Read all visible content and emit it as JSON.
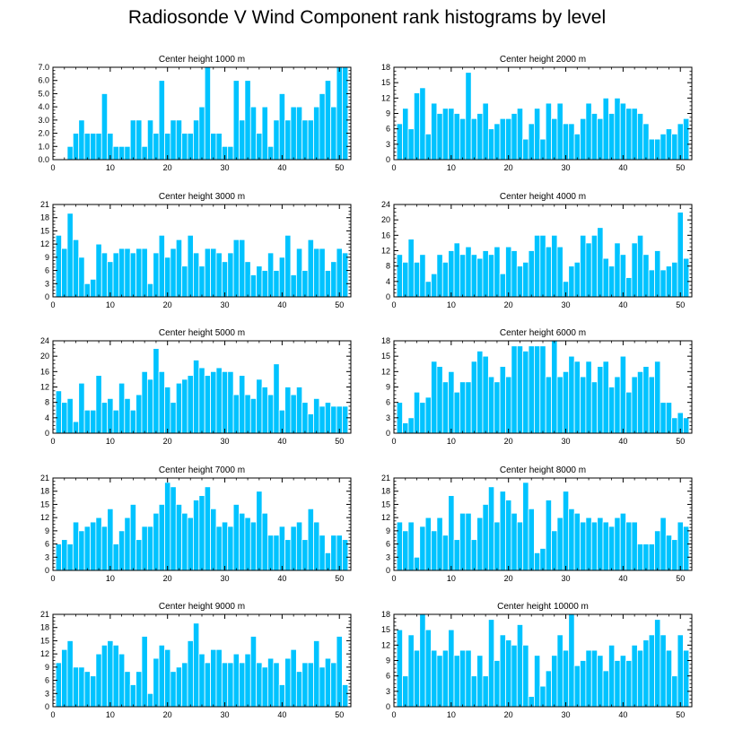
{
  "title": "Radiosonde V Wind Component rank histograms by level",
  "colors": {
    "bar": "#00c3ff",
    "bar_edge": "#ffffff",
    "axis": "#000000",
    "background": "#ffffff"
  },
  "chart_data": [
    {
      "type": "bar",
      "title": "Center height 1000 m",
      "x": [
        1,
        2,
        3,
        4,
        5,
        6,
        7,
        8,
        9,
        10,
        11,
        12,
        13,
        14,
        15,
        16,
        17,
        18,
        19,
        20,
        21,
        22,
        23,
        24,
        25,
        26,
        27,
        28,
        29,
        30,
        31,
        32,
        33,
        34,
        35,
        36,
        37,
        38,
        39,
        40,
        41,
        42,
        43,
        44,
        45,
        46,
        47,
        48,
        49,
        50,
        51
      ],
      "values": [
        0,
        0,
        1,
        2,
        3,
        2,
        2,
        2,
        5,
        2,
        1,
        1,
        1,
        3,
        3,
        1,
        3,
        2,
        6,
        2,
        3,
        3,
        2,
        2,
        3,
        4,
        7,
        2,
        2,
        1,
        1,
        6,
        3,
        6,
        4,
        2,
        4,
        1,
        3,
        5,
        3,
        4,
        4,
        3,
        3,
        4,
        5,
        6,
        4,
        7,
        7
      ],
      "xlim": [
        0,
        52
      ],
      "ylim": [
        0,
        7
      ],
      "yticks": [
        "0.0",
        "1.0",
        "2.0",
        "3.0",
        "4.0",
        "5.0",
        "6.0",
        "7.0"
      ],
      "xticks": [
        "0",
        "10",
        "20",
        "30",
        "40",
        "50"
      ]
    },
    {
      "type": "bar",
      "title": "Center height 2000 m",
      "x": [
        1,
        2,
        3,
        4,
        5,
        6,
        7,
        8,
        9,
        10,
        11,
        12,
        13,
        14,
        15,
        16,
        17,
        18,
        19,
        20,
        21,
        22,
        23,
        24,
        25,
        26,
        27,
        28,
        29,
        30,
        31,
        32,
        33,
        34,
        35,
        36,
        37,
        38,
        39,
        40,
        41,
        42,
        43,
        44,
        45,
        46,
        47,
        48,
        49,
        50,
        51
      ],
      "values": [
        7,
        10,
        6,
        13,
        14,
        5,
        11,
        9,
        10,
        10,
        9,
        8,
        17,
        8,
        9,
        11,
        6,
        7,
        8,
        8,
        9,
        10,
        4,
        7,
        10,
        4,
        11,
        8,
        11,
        7,
        7,
        5,
        8,
        11,
        9,
        8,
        12,
        9,
        12,
        11,
        10,
        10,
        9,
        7,
        4,
        4,
        5,
        6,
        5,
        7,
        8
      ],
      "xlim": [
        0,
        52
      ],
      "ylim": [
        0,
        18
      ],
      "yticks": [
        "0",
        "3",
        "6",
        "9",
        "12",
        "15",
        "18"
      ],
      "xticks": [
        "0",
        "10",
        "20",
        "30",
        "40",
        "50"
      ]
    },
    {
      "type": "bar",
      "title": "Center height 3000 m",
      "x": [
        1,
        2,
        3,
        4,
        5,
        6,
        7,
        8,
        9,
        10,
        11,
        12,
        13,
        14,
        15,
        16,
        17,
        18,
        19,
        20,
        21,
        22,
        23,
        24,
        25,
        26,
        27,
        28,
        29,
        30,
        31,
        32,
        33,
        34,
        35,
        36,
        37,
        38,
        39,
        40,
        41,
        42,
        43,
        44,
        45,
        46,
        47,
        48,
        49,
        50,
        51
      ],
      "values": [
        14,
        11,
        19,
        13,
        9,
        3,
        4,
        12,
        10,
        8,
        10,
        11,
        11,
        10,
        11,
        11,
        3,
        10,
        14,
        9,
        11,
        13,
        7,
        14,
        10,
        7,
        11,
        11,
        10,
        8,
        10,
        13,
        13,
        8,
        5,
        7,
        6,
        10,
        6,
        9,
        14,
        5,
        11,
        6,
        13,
        11,
        11,
        6,
        8,
        11,
        10
      ],
      "xlim": [
        0,
        52
      ],
      "ylim": [
        0,
        21
      ],
      "yticks": [
        "0",
        "3",
        "6",
        "9",
        "12",
        "15",
        "18",
        "21"
      ],
      "xticks": [
        "0",
        "10",
        "20",
        "30",
        "40",
        "50"
      ]
    },
    {
      "type": "bar",
      "title": "Center height 4000 m",
      "x": [
        1,
        2,
        3,
        4,
        5,
        6,
        7,
        8,
        9,
        10,
        11,
        12,
        13,
        14,
        15,
        16,
        17,
        18,
        19,
        20,
        21,
        22,
        23,
        24,
        25,
        26,
        27,
        28,
        29,
        30,
        31,
        32,
        33,
        34,
        35,
        36,
        37,
        38,
        39,
        40,
        41,
        42,
        43,
        44,
        45,
        46,
        47,
        48,
        49,
        50,
        51
      ],
      "values": [
        11,
        9,
        15,
        9,
        11,
        4,
        6,
        11,
        9,
        12,
        14,
        11,
        13,
        11,
        10,
        12,
        11,
        13,
        6,
        13,
        12,
        8,
        9,
        12,
        16,
        16,
        13,
        16,
        13,
        4,
        8,
        9,
        16,
        14,
        16,
        18,
        10,
        8,
        14,
        11,
        5,
        14,
        16,
        11,
        7,
        12,
        7,
        8,
        9,
        22,
        10
      ],
      "xlim": [
        0,
        52
      ],
      "ylim": [
        0,
        24
      ],
      "yticks": [
        "0",
        "4",
        "8",
        "12",
        "16",
        "20",
        "24"
      ],
      "xticks": [
        "0",
        "10",
        "20",
        "30",
        "40",
        "50"
      ]
    },
    {
      "type": "bar",
      "title": "Center height 5000 m",
      "x": [
        1,
        2,
        3,
        4,
        5,
        6,
        7,
        8,
        9,
        10,
        11,
        12,
        13,
        14,
        15,
        16,
        17,
        18,
        19,
        20,
        21,
        22,
        23,
        24,
        25,
        26,
        27,
        28,
        29,
        30,
        31,
        32,
        33,
        34,
        35,
        36,
        37,
        38,
        39,
        40,
        41,
        42,
        43,
        44,
        45,
        46,
        47,
        48,
        49,
        50,
        51
      ],
      "values": [
        11,
        8,
        9,
        3,
        13,
        6,
        6,
        15,
        8,
        9,
        6,
        13,
        9,
        6,
        10,
        16,
        14,
        22,
        16,
        12,
        8,
        13,
        14,
        15,
        19,
        17,
        15,
        16,
        17,
        16,
        16,
        10,
        15,
        10,
        9,
        14,
        12,
        10,
        18,
        6,
        12,
        10,
        12,
        8,
        5,
        9,
        7,
        8,
        7,
        7,
        7
      ],
      "xlim": [
        0,
        52
      ],
      "ylim": [
        0,
        24
      ],
      "yticks": [
        "0",
        "4",
        "8",
        "12",
        "16",
        "20",
        "24"
      ],
      "xticks": [
        "0",
        "10",
        "20",
        "30",
        "40",
        "50"
      ]
    },
    {
      "type": "bar",
      "title": "Center height 6000 m",
      "x": [
        1,
        2,
        3,
        4,
        5,
        6,
        7,
        8,
        9,
        10,
        11,
        12,
        13,
        14,
        15,
        16,
        17,
        18,
        19,
        20,
        21,
        22,
        23,
        24,
        25,
        26,
        27,
        28,
        29,
        30,
        31,
        32,
        33,
        34,
        35,
        36,
        37,
        38,
        39,
        40,
        41,
        42,
        43,
        44,
        45,
        46,
        47,
        48,
        49,
        50,
        51
      ],
      "values": [
        6,
        2,
        3,
        8,
        6,
        7,
        14,
        13,
        10,
        12,
        8,
        10,
        10,
        14,
        16,
        15,
        11,
        10,
        13,
        11,
        17,
        17,
        16,
        17,
        17,
        17,
        11,
        18,
        11,
        12,
        15,
        14,
        11,
        14,
        10,
        13,
        14,
        9,
        11,
        15,
        8,
        11,
        12,
        13,
        11,
        14,
        6,
        6,
        3,
        4,
        3
      ],
      "xlim": [
        0,
        52
      ],
      "ylim": [
        0,
        18
      ],
      "yticks": [
        "0",
        "3",
        "6",
        "9",
        "12",
        "15",
        "18"
      ],
      "xticks": [
        "0",
        "10",
        "20",
        "30",
        "40",
        "50"
      ]
    },
    {
      "type": "bar",
      "title": "Center height 7000 m",
      "x": [
        1,
        2,
        3,
        4,
        5,
        6,
        7,
        8,
        9,
        10,
        11,
        12,
        13,
        14,
        15,
        16,
        17,
        18,
        19,
        20,
        21,
        22,
        23,
        24,
        25,
        26,
        27,
        28,
        29,
        30,
        31,
        32,
        33,
        34,
        35,
        36,
        37,
        38,
        39,
        40,
        41,
        42,
        43,
        44,
        45,
        46,
        47,
        48,
        49,
        50,
        51
      ],
      "values": [
        6,
        7,
        6,
        11,
        9,
        10,
        11,
        12,
        10,
        14,
        6,
        9,
        12,
        15,
        7,
        10,
        10,
        13,
        15,
        20,
        19,
        15,
        13,
        12,
        16,
        17,
        19,
        14,
        10,
        11,
        10,
        15,
        13,
        12,
        11,
        18,
        13,
        8,
        8,
        10,
        7,
        10,
        11,
        7,
        14,
        11,
        8,
        4,
        8,
        8,
        7
      ],
      "xlim": [
        0,
        52
      ],
      "ylim": [
        0,
        21
      ],
      "yticks": [
        "0",
        "3",
        "6",
        "9",
        "12",
        "15",
        "18",
        "21"
      ],
      "xticks": [
        "0",
        "10",
        "20",
        "30",
        "40",
        "50"
      ]
    },
    {
      "type": "bar",
      "title": "Center height 8000 m",
      "x": [
        1,
        2,
        3,
        4,
        5,
        6,
        7,
        8,
        9,
        10,
        11,
        12,
        13,
        14,
        15,
        16,
        17,
        18,
        19,
        20,
        21,
        22,
        23,
        24,
        25,
        26,
        27,
        28,
        29,
        30,
        31,
        32,
        33,
        34,
        35,
        36,
        37,
        38,
        39,
        40,
        41,
        42,
        43,
        44,
        45,
        46,
        47,
        48,
        49,
        50,
        51
      ],
      "values": [
        11,
        9,
        11,
        3,
        10,
        12,
        9,
        12,
        8,
        17,
        7,
        13,
        13,
        7,
        12,
        15,
        19,
        11,
        18,
        16,
        13,
        11,
        20,
        14,
        4,
        5,
        16,
        9,
        12,
        18,
        14,
        13,
        11,
        12,
        11,
        12,
        11,
        10,
        12,
        13,
        11,
        11,
        6,
        6,
        6,
        9,
        12,
        8,
        7,
        11,
        10
      ],
      "xlim": [
        0,
        52
      ],
      "ylim": [
        0,
        21
      ],
      "yticks": [
        "0",
        "3",
        "6",
        "9",
        "12",
        "15",
        "18",
        "21"
      ],
      "xticks": [
        "0",
        "10",
        "20",
        "30",
        "40",
        "50"
      ]
    },
    {
      "type": "bar",
      "title": "Center height 9000 m",
      "x": [
        1,
        2,
        3,
        4,
        5,
        6,
        7,
        8,
        9,
        10,
        11,
        12,
        13,
        14,
        15,
        16,
        17,
        18,
        19,
        20,
        21,
        22,
        23,
        24,
        25,
        26,
        27,
        28,
        29,
        30,
        31,
        32,
        33,
        34,
        35,
        36,
        37,
        38,
        39,
        40,
        41,
        42,
        43,
        44,
        45,
        46,
        47,
        48,
        49,
        50,
        51
      ],
      "values": [
        10,
        13,
        15,
        9,
        9,
        8,
        7,
        12,
        14,
        15,
        14,
        12,
        8,
        5,
        8,
        16,
        3,
        11,
        14,
        13,
        8,
        9,
        10,
        15,
        19,
        12,
        10,
        13,
        13,
        10,
        10,
        12,
        10,
        12,
        16,
        10,
        9,
        11,
        10,
        5,
        11,
        13,
        8,
        10,
        10,
        15,
        9,
        11,
        10,
        16,
        5
      ],
      "xlim": [
        0,
        52
      ],
      "ylim": [
        0,
        21
      ],
      "yticks": [
        "0",
        "3",
        "6",
        "9",
        "12",
        "15",
        "18",
        "21"
      ],
      "xticks": [
        "0",
        "10",
        "20",
        "30",
        "40",
        "50"
      ]
    },
    {
      "type": "bar",
      "title": "Center height 10000 m",
      "x": [
        1,
        2,
        3,
        4,
        5,
        6,
        7,
        8,
        9,
        10,
        11,
        12,
        13,
        14,
        15,
        16,
        17,
        18,
        19,
        20,
        21,
        22,
        23,
        24,
        25,
        26,
        27,
        28,
        29,
        30,
        31,
        32,
        33,
        34,
        35,
        36,
        37,
        38,
        39,
        40,
        41,
        42,
        43,
        44,
        45,
        46,
        47,
        48,
        49,
        50,
        51
      ],
      "values": [
        15,
        6,
        14,
        11,
        18,
        15,
        11,
        10,
        11,
        15,
        10,
        11,
        11,
        6,
        10,
        6,
        17,
        9,
        14,
        13,
        12,
        16,
        12,
        2,
        10,
        4,
        7,
        10,
        14,
        11,
        18,
        8,
        9,
        11,
        11,
        10,
        7,
        12,
        9,
        10,
        9,
        12,
        11,
        13,
        14,
        17,
        14,
        11,
        6,
        14,
        11
      ],
      "xlim": [
        0,
        52
      ],
      "ylim": [
        0,
        18
      ],
      "yticks": [
        "0",
        "3",
        "6",
        "9",
        "12",
        "15",
        "18"
      ],
      "xticks": [
        "0",
        "10",
        "20",
        "30",
        "40",
        "50"
      ]
    }
  ]
}
